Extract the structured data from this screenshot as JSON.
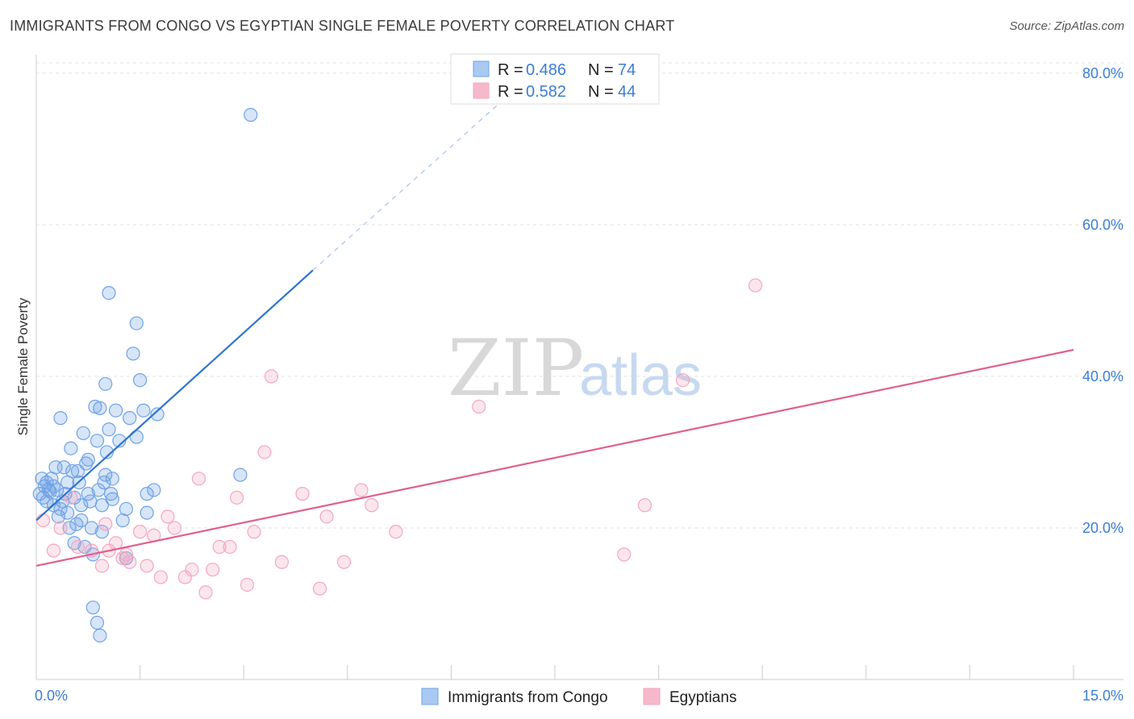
{
  "header": {
    "title": "IMMIGRANTS FROM CONGO VS EGYPTIAN SINGLE FEMALE POVERTY CORRELATION CHART",
    "source": "Source: ZipAtlas.com"
  },
  "watermark": {
    "zip": "ZIP",
    "atlas": "atlas"
  },
  "legend": {
    "rows": [
      {
        "r_label": "R =",
        "r_value": "0.486",
        "n_label": "N =",
        "n_value": "74",
        "color": "#a9c9f3"
      },
      {
        "r_label": "R =",
        "r_value": "0.582",
        "n_label": "N =",
        "n_value": "44",
        "color": "#f6b8cb"
      }
    ]
  },
  "chart_data": {
    "type": "scatter",
    "title": "IMMIGRANTS FROM CONGO VS EGYPTIAN SINGLE FEMALE POVERTY CORRELATION CHART",
    "xlabel": "",
    "ylabel": "Single Female Poverty",
    "xlim": [
      0,
      15
    ],
    "ylim": [
      0,
      82
    ],
    "x_tick_labels": [
      "0.0%",
      "15.0%"
    ],
    "x_ticks": [
      0,
      15
    ],
    "y_tick_labels": [
      "20.0%",
      "40.0%",
      "60.0%",
      "80.0%"
    ],
    "y_ticks": [
      20,
      40,
      60,
      80
    ],
    "grid": "horizontal dashed",
    "legend_position": "top-center",
    "series": [
      {
        "name": "Immigrants from Congo",
        "color": "#6fa3e6",
        "line_color": "#2e74d1",
        "trend": {
          "x0": 0.0,
          "y0": 21.0,
          "x1": 4.0,
          "y1": 54.0,
          "dash_to_x": 7.0,
          "dash_to_y": 78.5
        },
        "points": [
          [
            0.05,
            24.5
          ],
          [
            0.08,
            26.5
          ],
          [
            0.1,
            24.0
          ],
          [
            0.12,
            25.5
          ],
          [
            0.15,
            26.0
          ],
          [
            0.18,
            25.0
          ],
          [
            0.2,
            24.8
          ],
          [
            0.22,
            26.5
          ],
          [
            0.25,
            23.0
          ],
          [
            0.28,
            28.0
          ],
          [
            0.3,
            25.0
          ],
          [
            0.32,
            21.5
          ],
          [
            0.35,
            34.5
          ],
          [
            0.38,
            23.5
          ],
          [
            0.4,
            28.0
          ],
          [
            0.42,
            24.5
          ],
          [
            0.45,
            22.0
          ],
          [
            0.48,
            20.0
          ],
          [
            0.5,
            30.5
          ],
          [
            0.52,
            27.5
          ],
          [
            0.55,
            18.0
          ],
          [
            0.58,
            20.5
          ],
          [
            0.6,
            27.5
          ],
          [
            0.62,
            26.0
          ],
          [
            0.65,
            23.0
          ],
          [
            0.68,
            32.5
          ],
          [
            0.7,
            17.5
          ],
          [
            0.72,
            28.5
          ],
          [
            0.75,
            24.5
          ],
          [
            0.78,
            23.5
          ],
          [
            0.8,
            20.0
          ],
          [
            0.82,
            16.5
          ],
          [
            0.85,
            36.0
          ],
          [
            0.88,
            31.5
          ],
          [
            0.9,
            25.0
          ],
          [
            0.92,
            35.8
          ],
          [
            0.95,
            23.0
          ],
          [
            0.98,
            26.0
          ],
          [
            1.0,
            27.0
          ],
          [
            1.02,
            30.0
          ],
          [
            1.05,
            33.0
          ],
          [
            1.08,
            24.5
          ],
          [
            1.1,
            26.5
          ],
          [
            1.15,
            35.5
          ],
          [
            1.2,
            31.5
          ],
          [
            1.25,
            21.0
          ],
          [
            1.3,
            22.5
          ],
          [
            1.35,
            34.5
          ],
          [
            1.4,
            43.0
          ],
          [
            1.45,
            47.0
          ],
          [
            1.5,
            39.5
          ],
          [
            1.55,
            35.5
          ],
          [
            1.6,
            24.5
          ],
          [
            1.7,
            25.0
          ],
          [
            1.75,
            35.0
          ],
          [
            2.95,
            27.0
          ],
          [
            3.1,
            74.5
          ],
          [
            0.82,
            9.5
          ],
          [
            0.88,
            7.5
          ],
          [
            0.92,
            5.8
          ],
          [
            1.0,
            39.0
          ],
          [
            1.05,
            51.0
          ],
          [
            0.15,
            23.5
          ],
          [
            0.25,
            25.5
          ],
          [
            0.35,
            22.5
          ],
          [
            0.45,
            26.0
          ],
          [
            0.55,
            24.0
          ],
          [
            0.65,
            21.0
          ],
          [
            0.75,
            29.0
          ],
          [
            0.95,
            19.5
          ],
          [
            1.1,
            23.8
          ],
          [
            1.3,
            16.0
          ],
          [
            1.45,
            32.0
          ],
          [
            1.6,
            22.0
          ]
        ]
      },
      {
        "name": "Egyptians",
        "color": "#f4a6bf",
        "line_color": "#e0608f",
        "trend": {
          "x0": 0.0,
          "y0": 15.0,
          "x1": 15.0,
          "y1": 43.5
        },
        "points": [
          [
            0.1,
            21.0
          ],
          [
            0.25,
            17.0
          ],
          [
            0.35,
            20.0
          ],
          [
            0.6,
            17.5
          ],
          [
            0.8,
            17.0
          ],
          [
            0.95,
            15.0
          ],
          [
            1.0,
            20.5
          ],
          [
            1.15,
            18.0
          ],
          [
            1.25,
            16.0
          ],
          [
            1.35,
            15.5
          ],
          [
            1.5,
            19.5
          ],
          [
            1.6,
            15.0
          ],
          [
            1.7,
            19.0
          ],
          [
            1.8,
            13.5
          ],
          [
            1.9,
            21.5
          ],
          [
            2.0,
            20.0
          ],
          [
            2.15,
            13.5
          ],
          [
            2.25,
            14.5
          ],
          [
            2.35,
            26.5
          ],
          [
            2.45,
            11.5
          ],
          [
            2.55,
            14.5
          ],
          [
            2.65,
            17.5
          ],
          [
            2.8,
            17.5
          ],
          [
            2.9,
            24.0
          ],
          [
            3.05,
            12.5
          ],
          [
            3.15,
            19.5
          ],
          [
            3.3,
            30.0
          ],
          [
            3.4,
            40.0
          ],
          [
            3.55,
            15.5
          ],
          [
            3.85,
            24.5
          ],
          [
            4.1,
            12.0
          ],
          [
            4.2,
            21.5
          ],
          [
            4.45,
            15.5
          ],
          [
            4.7,
            25.0
          ],
          [
            4.85,
            23.0
          ],
          [
            5.2,
            19.5
          ],
          [
            6.4,
            36.0
          ],
          [
            8.5,
            16.5
          ],
          [
            8.8,
            23.0
          ],
          [
            9.35,
            39.5
          ],
          [
            10.4,
            52.0
          ],
          [
            0.5,
            24.0
          ],
          [
            1.3,
            16.5
          ],
          [
            1.05,
            17.0
          ]
        ]
      }
    ]
  },
  "bottom_legend": [
    {
      "label": "Immigrants from Congo",
      "color": "#a9c9f3"
    },
    {
      "label": "Egyptians",
      "color": "#f6b8cb"
    }
  ]
}
